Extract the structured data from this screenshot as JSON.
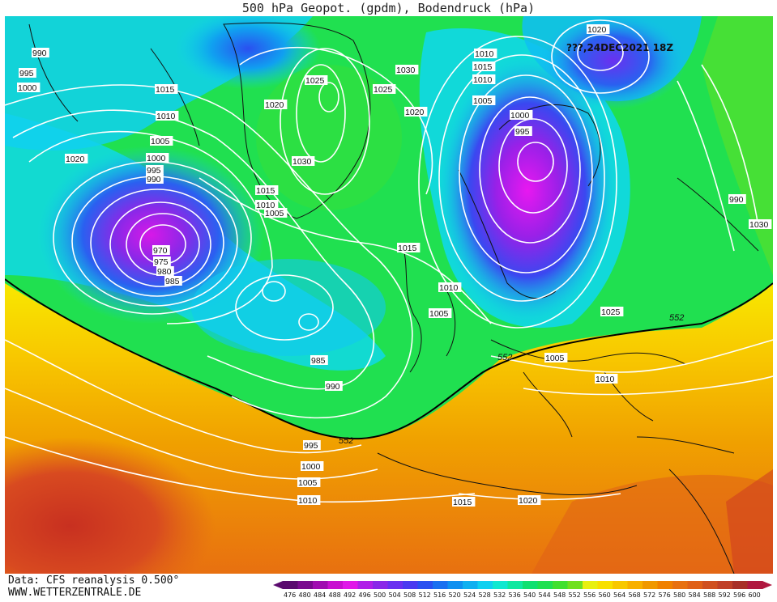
{
  "title": "500 hPa Geopot. (gpdm), Bodendruck (hPa)",
  "run_label": "???,24DEC2021 18Z",
  "footer": {
    "source": "Data: CFS reanalysis 0.500°",
    "site": "WWW.WETTERZENTRALE.DE"
  },
  "colors": {
    "land_border": "#111111",
    "isobar": "#ffffff",
    "contour_552": "#000000"
  },
  "isobar_labels": [
    "990",
    "995",
    "1000",
    "1015",
    "1010",
    "1005",
    "1020",
    "1000",
    "995",
    "990",
    "970",
    "975",
    "980",
    "985",
    "1025",
    "1020",
    "1030",
    "1015",
    "1010",
    "1005",
    "1030",
    "1025",
    "1020",
    "1015",
    "1010",
    "1005",
    "985",
    "990",
    "995",
    "1000",
    "1005",
    "1010",
    "1015",
    "1020",
    "1010",
    "1015",
    "1010",
    "1005",
    "1000",
    "995",
    "990",
    "1030",
    "1025",
    "1005",
    "1010",
    "1020"
  ],
  "contour_labels": [
    "552",
    "552",
    "552"
  ],
  "legend": {
    "values": [
      "476",
      "480",
      "484",
      "488",
      "492",
      "496",
      "500",
      "504",
      "508",
      "512",
      "516",
      "520",
      "524",
      "528",
      "532",
      "536",
      "540",
      "544",
      "548",
      "552",
      "556",
      "560",
      "564",
      "568",
      "572",
      "576",
      "580",
      "584",
      "588",
      "592",
      "596",
      "600"
    ],
    "colors": [
      "#5a0a6e",
      "#7a0a8e",
      "#a00cb0",
      "#c810d0",
      "#e018e8",
      "#b020e8",
      "#8a28e8",
      "#6a30f0",
      "#4a3af0",
      "#2a50f0",
      "#1a70f0",
      "#1090f0",
      "#10b0f0",
      "#10d0f0",
      "#10e8d0",
      "#10e8a0",
      "#10e070",
      "#20e050",
      "#40e030",
      "#70e020",
      "#e8f010",
      "#f8e000",
      "#f8c800",
      "#f8b000",
      "#f09800",
      "#f08000",
      "#e87010",
      "#e06018",
      "#d05020",
      "#c04028",
      "#a83028",
      "#b01840"
    ]
  }
}
